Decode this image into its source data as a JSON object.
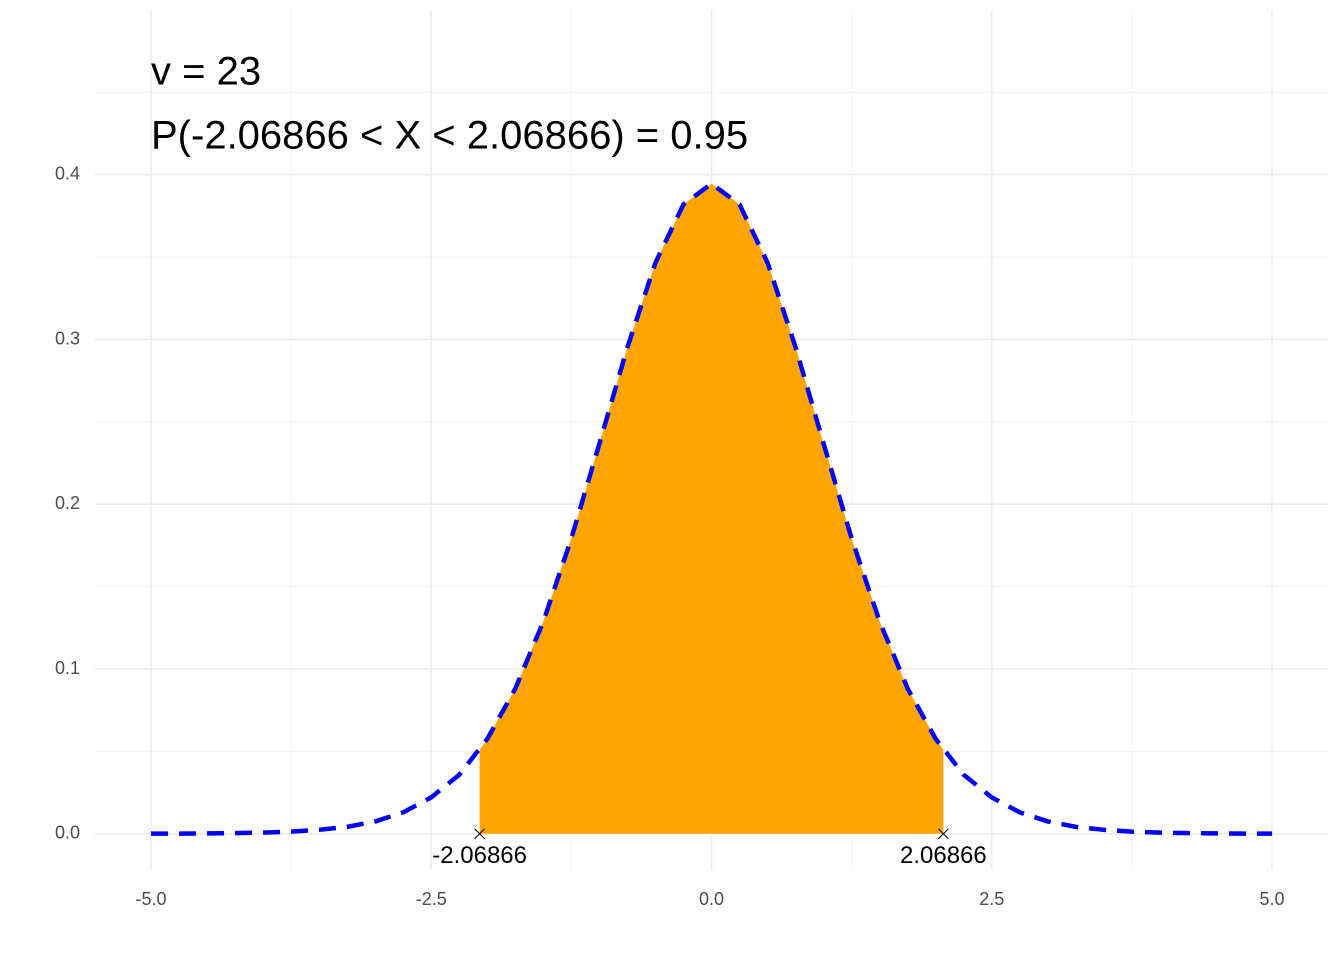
{
  "chart_data": {
    "type": "density",
    "annotations": [
      "v = 23",
      "P(-2.06866 < X < 2.06866) = 0.95"
    ],
    "x": [
      -5,
      -4.75,
      -4.5,
      -4.25,
      -4,
      -3.75,
      -3.5,
      -3.25,
      -3,
      -2.75,
      -2.5,
      -2.25,
      -2,
      -1.75,
      -1.5,
      -1.25,
      -1,
      -0.75,
      -0.5,
      -0.25,
      0,
      0.25,
      0.5,
      0.75,
      1,
      1.25,
      1.5,
      1.75,
      2,
      2.25,
      2.5,
      2.75,
      3,
      3.25,
      3.5,
      3.75,
      4,
      4.25,
      4.5,
      4.75,
      5
    ],
    "values": [
      0.0001,
      0.0001,
      0.0002,
      0.0004,
      0.0007,
      0.0013,
      0.0024,
      0.0042,
      0.0075,
      0.013,
      0.0221,
      0.0358,
      0.0576,
      0.0881,
      0.1288,
      0.1793,
      0.2368,
      0.2953,
      0.3466,
      0.382,
      0.3946,
      0.382,
      0.3466,
      0.2953,
      0.2368,
      0.1793,
      0.1288,
      0.0881,
      0.0576,
      0.0358,
      0.0221,
      0.013,
      0.0075,
      0.0042,
      0.0024,
      0.0013,
      0.0007,
      0.0004,
      0.0002,
      0.0001,
      0.0001
    ],
    "line_color": "#0000ff",
    "shade": {
      "color": "#ffa500",
      "x": [
        -2.06866,
        -2,
        -1.75,
        -1.5,
        -1.25,
        -1,
        -0.75,
        -0.5,
        -0.25,
        0,
        0.25,
        0.5,
        0.75,
        1,
        1.25,
        1.5,
        1.75,
        2,
        2.06866
      ],
      "values": [
        0.0509,
        0.0576,
        0.0881,
        0.1288,
        0.1793,
        0.2368,
        0.2953,
        0.3466,
        0.382,
        0.3946,
        0.382,
        0.3466,
        0.2953,
        0.2368,
        0.1793,
        0.1288,
        0.0881,
        0.0576,
        0.0509
      ]
    },
    "markers": {
      "x": [
        -2.06866,
        2.06866
      ],
      "values": [
        0,
        0
      ]
    },
    "xlim": [
      -5.5,
      5.5
    ],
    "ylim": [
      -0.022,
      0.5
    ],
    "xticks": [
      {
        "value": -5,
        "label": "-5.0"
      },
      {
        "value": -2.5,
        "label": "-2.5"
      },
      {
        "value": 0,
        "label": "0.0"
      },
      {
        "value": 2.5,
        "label": "2.5"
      },
      {
        "value": 5,
        "label": "5.0"
      }
    ],
    "yticks": [
      {
        "value": 0,
        "label": "0.0"
      },
      0.1,
      0.2,
      0.3,
      0.4
    ],
    "x_minor_ticks": [
      -3.75,
      -1.25,
      1.25,
      3.75
    ],
    "y_minor_ticks": [
      0.05,
      0.15,
      0.25,
      0.35,
      0.45
    ],
    "grid": true
  }
}
